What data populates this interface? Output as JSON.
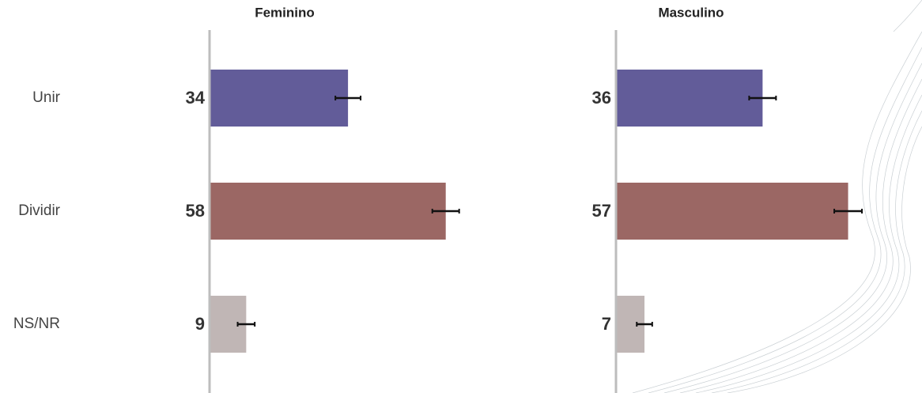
{
  "chart_data": {
    "type": "bar",
    "orientation": "horizontal",
    "categories": [
      "Unir",
      "Dividir",
      "NS/NR"
    ],
    "colors": [
      "#625c99",
      "#9b6764",
      "#c0b6b5"
    ],
    "xlim": [
      0,
      100
    ],
    "panels": [
      {
        "title": "Feminino",
        "values": [
          34,
          58,
          9
        ],
        "errors": [
          3.1,
          3.3,
          2.1
        ]
      },
      {
        "title": "Masculino",
        "values": [
          36,
          57,
          7
        ],
        "errors": [
          3.3,
          3.4,
          1.9
        ]
      }
    ]
  }
}
